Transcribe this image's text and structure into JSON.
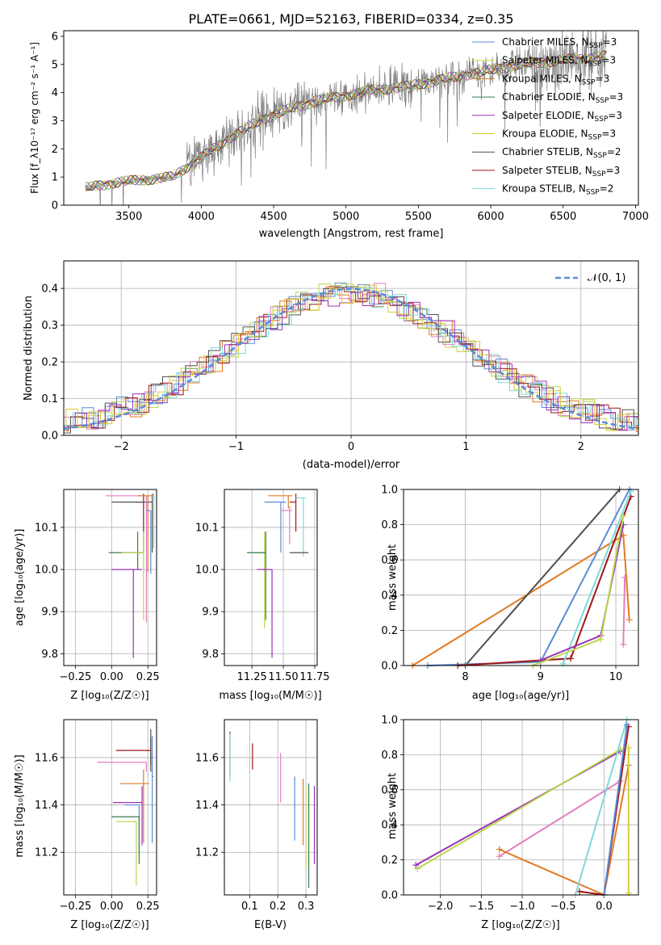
{
  "figure": {
    "title": "PLATE=0661, MJD=52163, FIBERID=0334, z=0.35"
  },
  "colors": {
    "chabrier_miles": "#5b8bd6",
    "salpeter_miles": "#c9d33c",
    "kroupa_miles": "#e07b22",
    "chabrier_elodie": "#3a7d52",
    "salpeter_elodie": "#9b30b8",
    "kroupa_elodie": "#d4cc35",
    "chabrier_stelib": "#505050",
    "salpeter_stelib": "#a01515",
    "kroupa_stelib": "#7fd8d8",
    "pink": "#e37fbf",
    "lime": "#b8d84a",
    "data": "#7f7f7f",
    "gauss": "#5b8bd6"
  },
  "chart_data": [
    {
      "id": "spectrum",
      "type": "line",
      "title": "PLATE=0661, MJD=52163, FIBERID=0334, z=0.35",
      "xlabel": "wavelength [Angstrom, rest frame]",
      "ylabel": "Flux [f_λ10⁻¹⁷ erg cm⁻² s⁻¹ A⁻¹]",
      "xlim": [
        3050,
        7020
      ],
      "ylim": [
        0,
        6.2
      ],
      "xticks": [
        "3500",
        "4000",
        "4500",
        "5000",
        "5500",
        "6000",
        "6500",
        "7000"
      ],
      "yticks": [
        "0",
        "1",
        "2",
        "3",
        "4",
        "5",
        "6"
      ],
      "legend_position": "upper right",
      "legend": [
        {
          "label": "Chabrier MILES, N",
          "sub": "SSP",
          "suffix": "=3",
          "color_key": "chabrier_miles"
        },
        {
          "label": "Salpeter MILES, N",
          "sub": "SSP",
          "suffix": "=3",
          "color_key": "salpeter_miles"
        },
        {
          "label": "Kroupa MILES, N",
          "sub": "SSP",
          "suffix": "=3",
          "color_key": "kroupa_miles"
        },
        {
          "label": "Chabrier ELODIE, N",
          "sub": "SSP",
          "suffix": "=3",
          "color_key": "chabrier_elodie"
        },
        {
          "label": "Salpeter ELODIE, N",
          "sub": "SSP",
          "suffix": "=3",
          "color_key": "salpeter_elodie"
        },
        {
          "label": "Kroupa ELODIE, N",
          "sub": "SSP",
          "suffix": "=3",
          "color_key": "kroupa_elodie"
        },
        {
          "label": "Chabrier STELIB, N",
          "sub": "SSP",
          "suffix": "=2",
          "color_key": "chabrier_stelib"
        },
        {
          "label": "Salpeter STELIB, N",
          "sub": "SSP",
          "suffix": "=3",
          "color_key": "salpeter_stelib"
        },
        {
          "label": "Kroupa STELIB, N",
          "sub": "SSP",
          "suffix": "=2",
          "color_key": "kroupa_stelib"
        }
      ],
      "continuum": {
        "x": [
          3200,
          3400,
          3600,
          3800,
          4000,
          4200,
          4400,
          4600,
          4800,
          5000,
          5200,
          5400,
          5600,
          5800,
          6000,
          6200,
          6400,
          6600,
          6800
        ],
        "y": [
          0.6,
          0.8,
          0.9,
          1.0,
          1.7,
          2.4,
          3.0,
          3.4,
          3.7,
          3.9,
          4.1,
          4.2,
          4.4,
          4.6,
          4.8,
          5.0,
          5.1,
          5.2,
          5.3
        ]
      }
    },
    {
      "id": "residuals",
      "type": "line",
      "xlabel": "(data-model)/error",
      "ylabel": "Normed distribution",
      "xlim": [
        -2.5,
        2.5
      ],
      "ylim": [
        0,
        0.475
      ],
      "xticks": [
        "−2",
        "−1",
        "0",
        "1",
        "2"
      ],
      "yticks": [
        "0.0",
        "0.1",
        "0.2",
        "0.3",
        "0.4"
      ],
      "legend": [
        {
          "label": "𝒩(0, 1)",
          "color_key": "gauss"
        }
      ],
      "legend_position": "upper right",
      "series_count": 9
    },
    {
      "id": "age_vs_Z",
      "type": "scatter",
      "xlabel": "Z [log₁₀(Z/Z☉)]",
      "ylabel": "age  [log₁₀(age/yr)]",
      "xlim": [
        -0.33,
        0.31
      ],
      "ylim": [
        9.772,
        10.19
      ],
      "xticks": [
        "−0.25",
        "0.00",
        "0.25"
      ],
      "yticks": [
        "9.8",
        "9.9",
        "10.0",
        "10.1"
      ],
      "points": [
        {
          "x": 0.22,
          "y": 10.16,
          "xerr": [
            0.05,
            0.0
          ],
          "yerr": [
            0.12,
            0.02
          ],
          "color_key": "salpeter_stelib"
        },
        {
          "x": 0.28,
          "y": 10.16,
          "xerr": [
            0.28,
            0.0
          ],
          "yerr": [
            0.12,
            0.02
          ],
          "color_key": "chabrier_stelib"
        },
        {
          "x": 0.24,
          "y": 10.175,
          "xerr": [
            0.28,
            0.0
          ],
          "yerr": [
            0.3,
            0.0
          ],
          "color_key": "pink"
        },
        {
          "x": 0.25,
          "y": 10.175,
          "xerr": [
            0.07,
            0.04
          ],
          "yerr": [
            0.18,
            0.0
          ],
          "color_key": "kroupa_miles"
        },
        {
          "x": 0.29,
          "y": 10.17,
          "xerr": [
            0.02,
            0.01
          ],
          "yerr": [
            0.12,
            0.01
          ],
          "color_key": "kroupa_stelib"
        },
        {
          "x": 0.27,
          "y": 10.14,
          "xerr": [
            0.03,
            0.0
          ],
          "yerr": [
            0.15,
            0.0
          ],
          "color_key": "chabrier_miles"
        },
        {
          "x": 0.18,
          "y": 10.04,
          "xerr": [
            0.2,
            0.04
          ],
          "yerr": [
            0.04,
            0.05
          ],
          "color_key": "chabrier_elodie"
        },
        {
          "x": 0.22,
          "y": 10.04,
          "xerr": [
            0.15,
            0.0
          ],
          "yerr": [
            0.16,
            0.05
          ],
          "color_key": "lime"
        },
        {
          "x": 0.15,
          "y": 10.0,
          "xerr": [
            0.15,
            0.06
          ],
          "yerr": [
            0.21,
            0.0
          ],
          "color_key": "salpeter_elodie"
        }
      ]
    },
    {
      "id": "age_vs_mass",
      "type": "scatter",
      "xlabel": "mass [log₁₀(M/M☉)]",
      "ylabel": "",
      "xlim": [
        11.03,
        11.77
      ],
      "ylim": [
        9.772,
        10.19
      ],
      "xticks": [
        "11.25",
        "11.50",
        "11.75"
      ],
      "yticks": [
        "9.8",
        "9.9",
        "10.0",
        "10.1"
      ],
      "points": [
        {
          "x": 11.6,
          "y": 10.16,
          "xerr": [
            0.05,
            0.0
          ],
          "yerr": [
            0.07,
            0.02
          ],
          "color_key": "salpeter_stelib"
        },
        {
          "x": 11.54,
          "y": 10.175,
          "xerr": [
            0.16,
            0.03
          ],
          "yerr": [
            0.03,
            0.0
          ],
          "color_key": "kroupa_miles"
        },
        {
          "x": 11.48,
          "y": 10.16,
          "xerr": [
            0.13,
            0.04
          ],
          "yerr": [
            0.12,
            0.0
          ],
          "color_key": "chabrier_miles"
        },
        {
          "x": 11.66,
          "y": 10.17,
          "xerr": [
            0.06,
            0.02
          ],
          "yerr": [
            0.14,
            0.0
          ],
          "color_key": "kroupa_stelib"
        },
        {
          "x": 11.55,
          "y": 10.14,
          "xerr": [
            0.07,
            0.02
          ],
          "yerr": [
            0.08,
            0.01
          ],
          "color_key": "pink"
        },
        {
          "x": 11.64,
          "y": 10.04,
          "xerr": [
            0.09,
            0.06
          ],
          "yerr": [
            0.0,
            0.0
          ],
          "color_key": "chabrier_stelib"
        },
        {
          "x": 11.35,
          "y": 10.04,
          "xerr": [
            0.12,
            0.0
          ],
          "yerr": [
            0.18,
            0.05
          ],
          "color_key": "lime"
        },
        {
          "x": 11.36,
          "y": 10.04,
          "xerr": [
            0.15,
            0.0
          ],
          "yerr": [
            0.16,
            0.05
          ],
          "color_key": "chabrier_elodie"
        },
        {
          "x": 11.41,
          "y": 10.0,
          "xerr": [
            0.12,
            0.0
          ],
          "yerr": [
            0.21,
            0.0
          ],
          "color_key": "salpeter_elodie"
        }
      ]
    },
    {
      "id": "weight_vs_age",
      "type": "line",
      "xlabel": "age  [log₁₀(age/yr)]",
      "ylabel": "mass weight",
      "xlim": [
        7.18,
        10.3
      ],
      "ylim": [
        0,
        1.0
      ],
      "xticks": [
        "8",
        "9",
        "10"
      ],
      "yticks": [
        "0.0",
        "0.2",
        "0.4",
        "0.6",
        "0.8",
        "1.0"
      ],
      "series": [
        {
          "color_key": "kroupa_miles",
          "x": [
            7.3,
            10.1,
            10.18
          ],
          "y": [
            0.0,
            0.74,
            0.26
          ]
        },
        {
          "color_key": "chabrier_stelib",
          "x": [
            8.0,
            10.05
          ],
          "y": [
            0.0,
            1.0
          ]
        },
        {
          "color_key": "chabrier_miles",
          "x": [
            7.5,
            9.0,
            10.18
          ],
          "y": [
            0.0,
            0.02,
            1.0
          ]
        },
        {
          "color_key": "salpeter_stelib",
          "x": [
            7.9,
            9.4,
            10.2
          ],
          "y": [
            0.0,
            0.04,
            0.96
          ]
        },
        {
          "color_key": "kroupa_stelib",
          "x": [
            9.3,
            10.2
          ],
          "y": [
            0.01,
            0.99
          ]
        },
        {
          "color_key": "salpeter_elodie",
          "x": [
            9.0,
            9.8,
            10.1
          ],
          "y": [
            0.03,
            0.17,
            0.8
          ]
        },
        {
          "color_key": "lime",
          "x": [
            8.9,
            9.8,
            10.1
          ],
          "y": [
            0.0,
            0.15,
            0.85
          ]
        },
        {
          "color_key": "pink",
          "x": [
            10.1,
            10.12
          ],
          "y": [
            0.12,
            0.5
          ]
        }
      ]
    },
    {
      "id": "mass_vs_Z",
      "type": "scatter",
      "xlabel": "Z [log₁₀(Z/Z☉)]",
      "ylabel": "mass [log₁₀(M/M☉)]",
      "xlim": [
        -0.33,
        0.31
      ],
      "ylim": [
        11.02,
        11.76
      ],
      "xticks": [
        "−0.25",
        "0.00",
        "0.25"
      ],
      "yticks": [
        "11.2",
        "11.4",
        "11.6"
      ],
      "points": [
        {
          "x": 0.27,
          "y": 11.63,
          "xerr": [
            0.24,
            0.0
          ],
          "yerr": [
            0.06,
            0.05
          ],
          "color_key": "salpeter_stelib"
        },
        {
          "x": 0.27,
          "y": 11.58,
          "xerr": [
            0.0,
            0.0
          ],
          "yerr": [
            0.04,
            0.14
          ],
          "color_key": "chabrier_stelib"
        },
        {
          "x": 0.24,
          "y": 11.58,
          "xerr": [
            0.34,
            0.0
          ],
          "yerr": [
            0.04,
            0.0
          ],
          "color_key": "pink"
        },
        {
          "x": 0.22,
          "y": 11.49,
          "xerr": [
            0.16,
            0.04
          ],
          "yerr": [
            0.25,
            0.06
          ],
          "color_key": "kroupa_miles"
        },
        {
          "x": 0.28,
          "y": 11.52,
          "xerr": [
            0.0,
            0.01
          ],
          "yerr": [
            0.28,
            0.17
          ],
          "color_key": "chabrier_miles"
        },
        {
          "x": 0.21,
          "y": 11.41,
          "xerr": [
            0.2,
            0.0
          ],
          "yerr": [
            0.18,
            0.07
          ],
          "color_key": "salpeter_elodie"
        },
        {
          "x": 0.19,
          "y": 11.4,
          "xerr": [
            0.1,
            0.0
          ],
          "yerr": [
            0.2,
            0.0
          ],
          "color_key": "chabrier_miles"
        },
        {
          "x": 0.19,
          "y": 11.35,
          "xerr": [
            0.19,
            0.0
          ],
          "yerr": [
            0.2,
            0.0
          ],
          "color_key": "chabrier_elodie"
        },
        {
          "x": 0.17,
          "y": 11.33,
          "xerr": [
            0.14,
            0.0
          ],
          "yerr": [
            0.27,
            0.0
          ],
          "color_key": "lime"
        }
      ]
    },
    {
      "id": "mass_vs_ebv",
      "type": "scatter",
      "xlabel": "E(B-V)",
      "ylabel": "",
      "xlim": [
        0.01,
        0.34
      ],
      "ylim": [
        11.02,
        11.76
      ],
      "xticks": [
        "0.1",
        "0.2",
        "0.3"
      ],
      "yticks": [
        "11.2",
        "11.4",
        "11.6"
      ],
      "points": [
        {
          "x": 0.03,
          "y": 11.6,
          "yerr": [
            0.08,
            0.11
          ],
          "color_key": "chabrier_stelib"
        },
        {
          "x": 0.03,
          "y": 11.6,
          "yerr": [
            0.1,
            0.1
          ],
          "color_key": "kroupa_stelib"
        },
        {
          "x": 0.11,
          "y": 11.6,
          "yerr": [
            0.05,
            0.06
          ],
          "color_key": "salpeter_stelib"
        },
        {
          "x": 0.21,
          "y": 11.52,
          "yerr": [
            0.11,
            0.1
          ],
          "color_key": "pink"
        },
        {
          "x": 0.26,
          "y": 11.38,
          "yerr": [
            0.13,
            0.14
          ],
          "color_key": "chabrier_miles"
        },
        {
          "x": 0.29,
          "y": 11.37,
          "yerr": [
            0.14,
            0.14
          ],
          "color_key": "kroupa_miles"
        },
        {
          "x": 0.3,
          "y": 11.33,
          "yerr": [
            0.2,
            0.15
          ],
          "color_key": "lime"
        },
        {
          "x": 0.31,
          "y": 11.3,
          "yerr": [
            0.25,
            0.19
          ],
          "color_key": "chabrier_elodie"
        },
        {
          "x": 0.33,
          "y": 11.3,
          "yerr": [
            0.15,
            0.18
          ],
          "color_key": "salpeter_elodie"
        }
      ]
    },
    {
      "id": "weight_vs_Z",
      "type": "line",
      "xlabel": "Z [log₁₀(Z/Z☉)]",
      "ylabel": "mass weight",
      "xlim": [
        -2.45,
        0.42
      ],
      "ylim": [
        0,
        1.0
      ],
      "xticks": [
        "−2.0",
        "−1.5",
        "−1.0",
        "−0.5",
        "0.0"
      ],
      "yticks": [
        "0.0",
        "0.2",
        "0.4",
        "0.6",
        "0.8",
        "1.0"
      ],
      "series": [
        {
          "color_key": "salpeter_elodie",
          "x": [
            -2.3,
            0.2
          ],
          "y": [
            0.17,
            0.82
          ]
        },
        {
          "color_key": "lime",
          "x": [
            -2.28,
            0.2
          ],
          "y": [
            0.15,
            0.83
          ]
        },
        {
          "color_key": "pink",
          "x": [
            -1.28,
            0.2
          ],
          "y": [
            0.22,
            0.65
          ]
        },
        {
          "color_key": "kroupa_miles",
          "x": [
            -1.28,
            0.0,
            0.3
          ],
          "y": [
            0.26,
            0.0,
            0.74
          ]
        },
        {
          "color_key": "salpeter_stelib",
          "x": [
            -0.3,
            0.0,
            0.3
          ],
          "y": [
            0.02,
            0.0,
            0.96
          ]
        },
        {
          "color_key": "kroupa_stelib",
          "x": [
            -0.35,
            0.28
          ],
          "y": [
            0.0,
            1.0
          ]
        },
        {
          "color_key": "chabrier_miles",
          "x": [
            0.0,
            0.28
          ],
          "y": [
            0.0,
            0.97
          ]
        },
        {
          "color_key": "kroupa_elodie",
          "x": [
            0.3,
            0.3
          ],
          "y": [
            0.01,
            0.84
          ]
        }
      ]
    }
  ]
}
